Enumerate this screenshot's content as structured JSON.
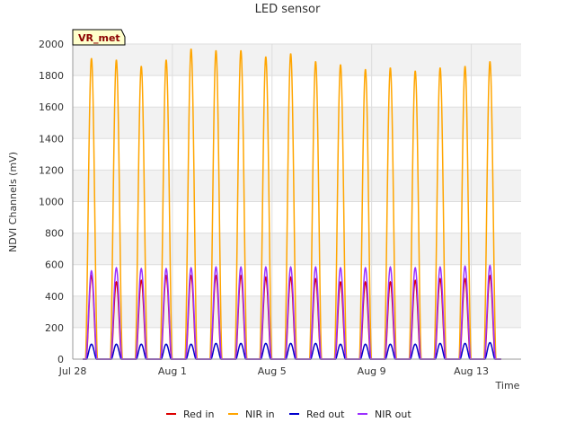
{
  "chart_data": {
    "type": "line",
    "title": "LED sensor",
    "xlabel": "Time",
    "ylabel": "NDVI Channels (mV)",
    "badge": "VR_met",
    "ylim": [
      0,
      2000
    ],
    "yticks": [
      0,
      200,
      400,
      600,
      800,
      1000,
      1200,
      1400,
      1600,
      1800,
      2000
    ],
    "xlim": [
      0,
      18
    ],
    "xticks": [
      {
        "value": 0,
        "label": "Jul 28"
      },
      {
        "value": 4,
        "label": "Aug 1"
      },
      {
        "value": 8,
        "label": "Aug 5"
      },
      {
        "value": 12,
        "label": "Aug 9"
      },
      {
        "value": 16,
        "label": "Aug 13"
      }
    ],
    "day_peak_times": [
      0.75,
      1.75,
      2.75,
      3.75,
      4.75,
      5.75,
      6.75,
      7.75,
      8.75,
      9.75,
      10.75,
      11.75,
      12.75,
      13.75,
      14.75,
      15.75,
      16.75
    ],
    "series": [
      {
        "name": "Red in",
        "color": "#dd0000",
        "daily_peaks": [
          530,
          490,
          500,
          530,
          530,
          530,
          530,
          520,
          520,
          510,
          490,
          490,
          490,
          500,
          510,
          510,
          530
        ]
      },
      {
        "name": "NIR in",
        "color": "#ffa500",
        "daily_peaks": [
          1910,
          1900,
          1860,
          1900,
          1970,
          1960,
          1960,
          1920,
          1940,
          1890,
          1870,
          1840,
          1850,
          1830,
          1850,
          1860,
          1890
        ]
      },
      {
        "name": "Red out",
        "color": "#0000cc",
        "daily_peaks": [
          95,
          95,
          95,
          95,
          95,
          100,
          100,
          100,
          100,
          100,
          95,
          95,
          95,
          95,
          100,
          100,
          105
        ]
      },
      {
        "name": "NIR out",
        "color": "#9b30ff",
        "daily_peaks": [
          560,
          580,
          575,
          575,
          580,
          585,
          585,
          585,
          585,
          585,
          580,
          580,
          585,
          580,
          585,
          590,
          595
        ]
      }
    ]
  }
}
